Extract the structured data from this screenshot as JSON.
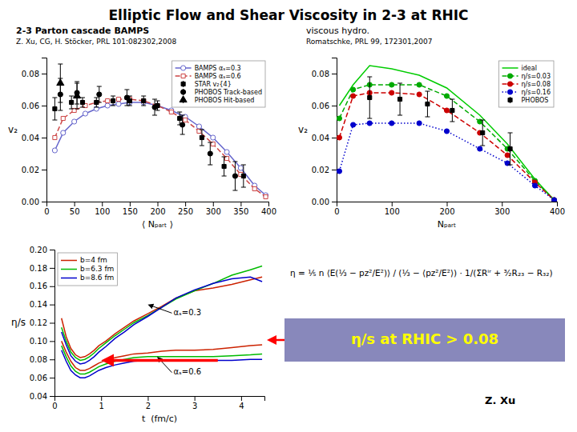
{
  "title": "Elliptic Flow and Shear Viscosity in 2-3 at RHIC",
  "annotations": [
    {
      "text": "η = ⅕ n ⟨E(⅓ − pz²/E²)⟩ / (⅓ − ⟨pz²/E²⟩) · 1/(ΣRⁱʳ + ³⁄₂R₂₃ − R₃₂)"
    },
    {
      "text": "η/s at RHIC > 0.08",
      "color": "#ffff00"
    },
    {
      "text": "Z. Xu"
    }
  ],
  "chart_data": [
    {
      "type": "line",
      "title": "2-3 Parton cascade BAMPS",
      "subtitle": "Z. Xu, CG, H. Stöcker, PRL 101:082302,2008",
      "xlabel": "⟨ Nₚₐᵣₜ ⟩",
      "ylabel": "v₂",
      "xlim": [
        0,
        400
      ],
      "ylim": [
        0,
        0.09
      ],
      "xticks": [
        0,
        50,
        100,
        150,
        200,
        250,
        300,
        350,
        400
      ],
      "yticks": [
        {
          "value": 0,
          "label": "0.00"
        },
        0.02,
        0.04,
        0.06,
        0.08
      ],
      "legend": "upper right",
      "series": [
        {
          "name": "BAMPS αₛ=0.3",
          "type": "line",
          "color": "#6666cc",
          "marker": "circle-open",
          "line_style": "solid",
          "x": [
            15,
            30,
            50,
            70,
            90,
            110,
            130,
            150,
            175,
            200,
            225,
            250,
            275,
            300,
            325,
            350,
            375,
            395
          ],
          "values": [
            0.032,
            0.043,
            0.05,
            0.055,
            0.058,
            0.06,
            0.061,
            0.062,
            0.062,
            0.06,
            0.057,
            0.053,
            0.047,
            0.04,
            0.031,
            0.021,
            0.01,
            0.004
          ]
        },
        {
          "name": "BAMPS αₛ=0.6",
          "type": "line",
          "color": "#cc4444",
          "marker": "square-open",
          "line_style": "dashed",
          "x": [
            15,
            30,
            50,
            70,
            90,
            110,
            130,
            150,
            175,
            200,
            225,
            250,
            275,
            300,
            325,
            350,
            375,
            395
          ],
          "values": [
            0.04,
            0.052,
            0.057,
            0.06,
            0.062,
            0.063,
            0.064,
            0.064,
            0.063,
            0.06,
            0.056,
            0.051,
            0.044,
            0.036,
            0.027,
            0.017,
            0.008,
            0.003
          ]
        },
        {
          "name": "STAR v₂{4}",
          "type": "scatter",
          "color": "#000000",
          "marker": "square",
          "x": [
            15,
            45,
            65,
            90,
            120,
            150,
            175,
            200,
            240,
            280,
            320,
            355
          ],
          "values": [
            0.058,
            0.062,
            0.062,
            0.062,
            0.063,
            0.063,
            0.063,
            0.06,
            0.052,
            0.04,
            0.022,
            0.016
          ],
          "errors": [
            0.007,
            0.004,
            0.003,
            0.003,
            0.003,
            0.003,
            0.003,
            0.003,
            0.004,
            0.005,
            0.006,
            0.007
          ]
        },
        {
          "name": "PHOBOS Track-based",
          "type": "scatter",
          "color": "#000000",
          "marker": "circle",
          "x": [
            25,
            55,
            95,
            145,
            195,
            245,
            295,
            340
          ],
          "values": [
            0.067,
            0.068,
            0.067,
            0.065,
            0.059,
            0.048,
            0.03,
            0.016
          ],
          "errors": [
            0.01,
            0.007,
            0.005,
            0.005,
            0.005,
            0.006,
            0.007,
            0.009
          ]
        },
        {
          "name": "PHOBOS Hit-based",
          "type": "scatter",
          "color": "#000000",
          "marker": "triangle",
          "x": [
            25,
            55
          ],
          "values": [
            0.074,
            0.066
          ],
          "errors": [
            0.012,
            0.008
          ]
        }
      ]
    },
    {
      "type": "line",
      "title": "viscous hydro.",
      "subtitle": "Romatschke, PRL 99, 172301,2007",
      "xlabel": "Nₚₐᵣₜ",
      "ylabel": "v₂",
      "xlim": [
        0,
        400
      ],
      "ylim": [
        0,
        0.09
      ],
      "xticks": [
        0,
        100,
        200,
        300,
        400
      ],
      "yticks": [
        {
          "value": 0,
          "label": "0.00"
        },
        0.02,
        0.04,
        0.06,
        0.08
      ],
      "legend": "upper right",
      "series": [
        {
          "name": "ideal",
          "type": "line",
          "color": "#00cc00",
          "line_style": "solid",
          "x": [
            5,
            30,
            60,
            100,
            150,
            200,
            260,
            310,
            360,
            395
          ],
          "values": [
            0.06,
            0.073,
            0.085,
            0.083,
            0.079,
            0.071,
            0.054,
            0.036,
            0.014,
            0.001
          ]
        },
        {
          "name": "η/s=0.03",
          "type": "line",
          "color": "#00aa00",
          "marker": "circle",
          "line_style": "dashed",
          "x": [
            5,
            30,
            60,
            100,
            150,
            200,
            260,
            310,
            360,
            395
          ],
          "values": [
            0.052,
            0.07,
            0.073,
            0.073,
            0.073,
            0.066,
            0.05,
            0.033,
            0.013,
            0.001
          ]
        },
        {
          "name": "η/s=0.08",
          "type": "line",
          "color": "#cc0000",
          "marker": "circle",
          "line_style": "dashed",
          "x": [
            5,
            30,
            60,
            100,
            150,
            200,
            260,
            310,
            360,
            395
          ],
          "values": [
            0.04,
            0.066,
            0.068,
            0.068,
            0.067,
            0.057,
            0.043,
            0.029,
            0.012,
            0.001
          ]
        },
        {
          "name": "η/s=0.16",
          "type": "line",
          "color": "#0000cc",
          "marker": "circle",
          "line_style": "dotted",
          "x": [
            5,
            30,
            60,
            100,
            150,
            200,
            260,
            310,
            360,
            395
          ],
          "values": [
            0.019,
            0.048,
            0.049,
            0.049,
            0.049,
            0.044,
            0.033,
            0.024,
            0.01,
            0.001
          ]
        },
        {
          "name": "PHOBOS",
          "type": "scatter",
          "color": "#000000",
          "marker": "square",
          "x": [
            60,
            115,
            165,
            210,
            265,
            315
          ],
          "values": [
            0.065,
            0.064,
            0.061,
            0.057,
            0.043,
            0.033
          ],
          "errors": [
            0.013,
            0.01,
            0.008,
            0.007,
            0.008,
            0.01
          ]
        }
      ]
    },
    {
      "type": "line",
      "xlabel": "t  (fm/c)",
      "ylabel": "η/s",
      "xlim": [
        0,
        4.5
      ],
      "ylim": [
        0.04,
        0.2
      ],
      "xticks": [
        0,
        1,
        2,
        3,
        4
      ],
      "yticks": [
        0.04,
        0.06,
        0.08,
        {
          "value": 0.1,
          "label": "0.10"
        },
        0.12,
        0.14,
        0.16,
        0.18,
        {
          "value": 0.2,
          "label": "0.20"
        }
      ],
      "legend": "upper left",
      "x": [
        0.15,
        0.25,
        0.35,
        0.45,
        0.55,
        0.65,
        0.75,
        0.85,
        0.95,
        1.1,
        1.3,
        1.5,
        1.7,
        2.0,
        2.3,
        2.6,
        3.0,
        3.4,
        3.8,
        4.2,
        4.45
      ],
      "series": [
        {
          "name": "b=4 fm",
          "color": "#cc2200",
          "line_style": "solid",
          "values": [
            0.125,
            0.105,
            0.092,
            0.085,
            0.082,
            0.083,
            0.086,
            0.09,
            0.095,
            0.1,
            0.108,
            0.115,
            0.122,
            0.13,
            0.138,
            0.147,
            0.155,
            0.158,
            0.162,
            0.167,
            0.17
          ]
        },
        {
          "name": "b=6.3 fm",
          "color": "#00bb00",
          "line_style": "solid",
          "values": [
            0.115,
            0.1,
            0.088,
            0.082,
            0.079,
            0.08,
            0.083,
            0.087,
            0.092,
            0.098,
            0.106,
            0.113,
            0.12,
            0.128,
            0.137,
            0.146,
            0.155,
            0.163,
            0.172,
            0.178,
            0.182
          ]
        },
        {
          "name": "b=8.6 fm",
          "color": "#0000cc",
          "line_style": "solid",
          "values": [
            0.11,
            0.096,
            0.084,
            0.078,
            0.075,
            0.076,
            0.079,
            0.083,
            0.088,
            0.094,
            0.103,
            0.11,
            0.118,
            0.127,
            0.137,
            0.147,
            0.156,
            0.163,
            0.168,
            0.17,
            0.165
          ]
        },
        {
          "color": "#cc2200",
          "line_style": "solid",
          "values": [
            0.1,
            0.088,
            0.078,
            0.071,
            0.068,
            0.068,
            0.07,
            0.073,
            0.076,
            0.079,
            0.082,
            0.084,
            0.086,
            0.087,
            0.089,
            0.09,
            0.09,
            0.091,
            0.093,
            0.095,
            0.096
          ]
        },
        {
          "color": "#00bb00",
          "line_style": "solid",
          "values": [
            0.095,
            0.083,
            0.073,
            0.067,
            0.064,
            0.064,
            0.066,
            0.069,
            0.072,
            0.075,
            0.078,
            0.08,
            0.082,
            0.083,
            0.083,
            0.083,
            0.083,
            0.083,
            0.084,
            0.085,
            0.086
          ]
        },
        {
          "color": "#0000cc",
          "line_style": "solid",
          "values": [
            0.09,
            0.078,
            0.068,
            0.063,
            0.06,
            0.06,
            0.062,
            0.065,
            0.068,
            0.071,
            0.074,
            0.076,
            0.078,
            0.079,
            0.079,
            0.079,
            0.079,
            0.079,
            0.079,
            0.08,
            0.08
          ]
        }
      ],
      "annotations": [
        {
          "text": "αₛ=0.3",
          "x": 2.0,
          "y": 0.14,
          "x_text": 2.55,
          "y_text": 0.135
        },
        {
          "text": "αₛ=0.6",
          "x": 2.2,
          "y": 0.083,
          "x_text": 2.55,
          "y_text": 0.07
        },
        {
          "x": 1.0,
          "y": 0.079,
          "x_text": 3.5,
          "y_text": 0.079,
          "color": "#ff0000"
        }
      ]
    }
  ]
}
